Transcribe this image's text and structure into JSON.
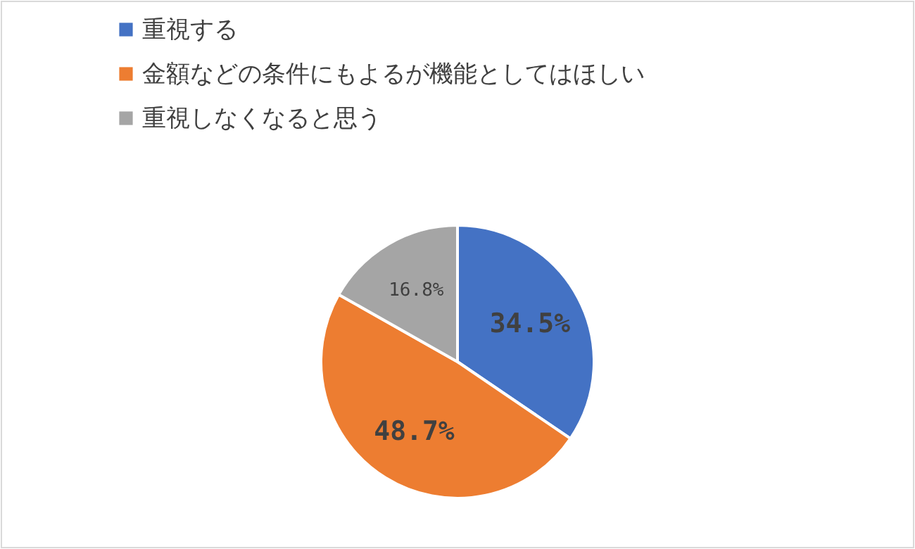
{
  "chart_data": {
    "type": "pie",
    "categories": [
      "重視する",
      "金額などの条件にもよるが機能としてはほしい",
      "重視しなくなると思う"
    ],
    "values": [
      34.5,
      48.7,
      16.8
    ],
    "colors": [
      "#4472c4",
      "#ed7d31",
      "#a5a5a5"
    ],
    "value_labels": [
      "34.5%",
      "48.7%",
      "16.8%"
    ],
    "legend": "top left"
  }
}
